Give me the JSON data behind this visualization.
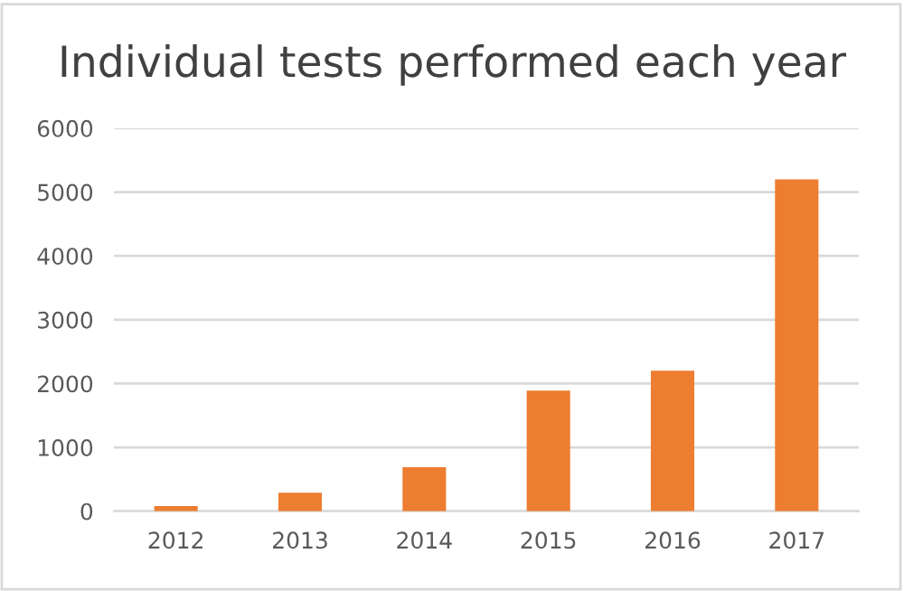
{
  "chart_data": {
    "type": "bar",
    "title": "Individual tests performed each year",
    "categories": [
      "2012",
      "2013",
      "2014",
      "2015",
      "2016",
      "2017"
    ],
    "values": [
      80,
      290,
      690,
      1890,
      2200,
      5200
    ],
    "color": "#ed7d31",
    "ylim": [
      0,
      6000
    ],
    "yticks": [
      0,
      1000,
      2000,
      3000,
      4000,
      5000,
      6000
    ],
    "grid": "y"
  }
}
